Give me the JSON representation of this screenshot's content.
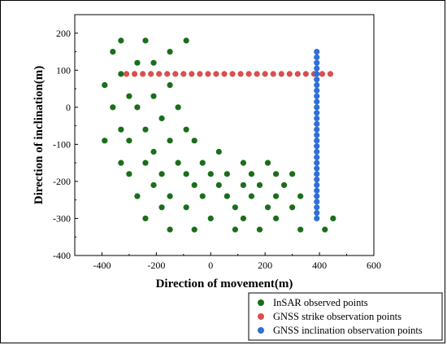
{
  "chart_data": {
    "type": "scatter",
    "xlabel": "Direction of movement(m)",
    "ylabel": "Direction of inclination(m)",
    "xlim": [
      -500,
      600
    ],
    "ylim": [
      -400,
      250
    ],
    "xticks": [
      -400,
      -200,
      0,
      200,
      400,
      600
    ],
    "yticks": [
      -400,
      -300,
      -200,
      -100,
      0,
      100,
      200
    ],
    "legend_position": "bottom-right",
    "series": [
      {
        "name": "InSAR observed points",
        "color": "#1a6e1a",
        "points": [
          [
            -330,
            180
          ],
          [
            -240,
            180
          ],
          [
            -90,
            180
          ],
          [
            -360,
            150
          ],
          [
            -150,
            150
          ],
          [
            -270,
            120
          ],
          [
            -210,
            120
          ],
          [
            -330,
            90
          ],
          [
            -390,
            60
          ],
          [
            -150,
            60
          ],
          [
            -300,
            30
          ],
          [
            -210,
            30
          ],
          [
            -360,
            0
          ],
          [
            -270,
            0
          ],
          [
            -120,
            0
          ],
          [
            -180,
            -30
          ],
          [
            -330,
            -60
          ],
          [
            -240,
            -60
          ],
          [
            -90,
            -60
          ],
          [
            -390,
            -90
          ],
          [
            -300,
            -90
          ],
          [
            -150,
            -90
          ],
          [
            -60,
            -90
          ],
          [
            -210,
            -120
          ],
          [
            30,
            -120
          ],
          [
            -330,
            -150
          ],
          [
            -240,
            -150
          ],
          [
            -120,
            -150
          ],
          [
            -30,
            -150
          ],
          [
            120,
            -150
          ],
          [
            210,
            -150
          ],
          [
            -300,
            -180
          ],
          [
            -180,
            -180
          ],
          [
            -90,
            -180
          ],
          [
            0,
            -180
          ],
          [
            60,
            -180
          ],
          [
            150,
            -180
          ],
          [
            240,
            -180
          ],
          [
            300,
            -180
          ],
          [
            -210,
            -210
          ],
          [
            -60,
            -210
          ],
          [
            30,
            -210
          ],
          [
            120,
            -210
          ],
          [
            180,
            -210
          ],
          [
            270,
            -210
          ],
          [
            -270,
            -240
          ],
          [
            -150,
            -240
          ],
          [
            -30,
            -240
          ],
          [
            60,
            -240
          ],
          [
            150,
            -240
          ],
          [
            240,
            -240
          ],
          [
            330,
            -240
          ],
          [
            -180,
            -270
          ],
          [
            -90,
            -270
          ],
          [
            90,
            -270
          ],
          [
            210,
            -270
          ],
          [
            300,
            -270
          ],
          [
            -240,
            -300
          ],
          [
            0,
            -300
          ],
          [
            120,
            -300
          ],
          [
            240,
            -300
          ],
          [
            450,
            -300
          ],
          [
            -150,
            -330
          ],
          [
            -60,
            -330
          ],
          [
            90,
            -330
          ],
          [
            180,
            -330
          ],
          [
            330,
            -330
          ],
          [
            420,
            -330
          ]
        ]
      },
      {
        "name": "GNSS strike observation points",
        "color": "#d94f4f",
        "x_start": -310,
        "x_end": 450,
        "x_step": 30,
        "y": 90
      },
      {
        "name": "GNSS inclination observation points",
        "color": "#2f6fd6",
        "x": 390,
        "y_start": 150,
        "y_end": -300,
        "y_step": -15
      }
    ]
  }
}
